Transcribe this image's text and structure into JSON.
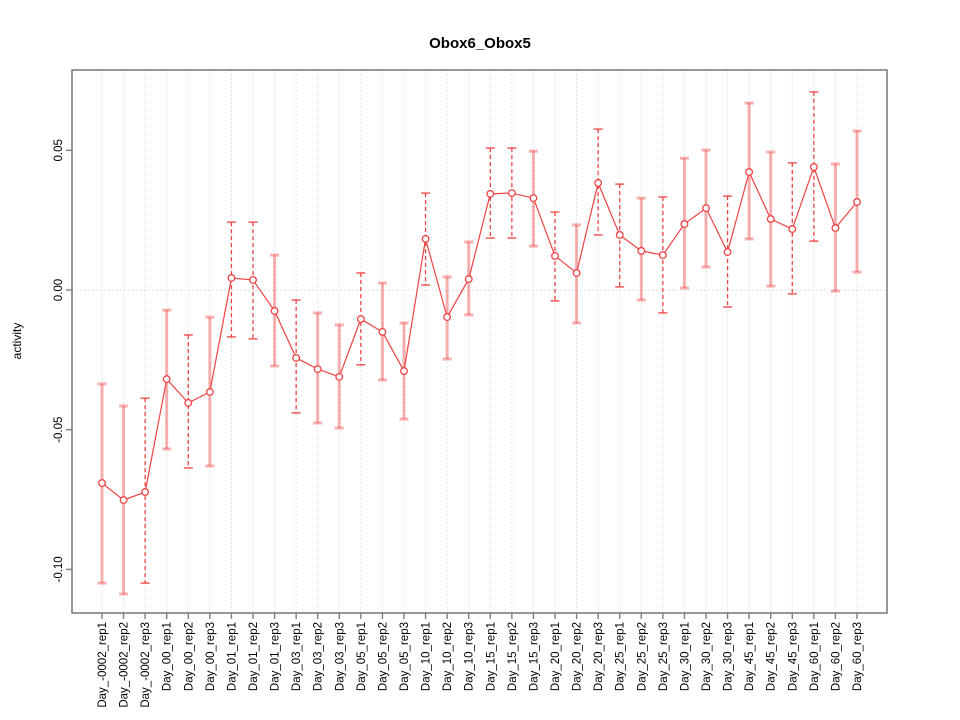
{
  "title": "Obox6_Obox5",
  "colors": {
    "series_red": "#ee4242",
    "band_pink": "rgba(238,66,66,0.42)",
    "grid": "#d8d8d8",
    "box": "#7e7e7e",
    "text": "#000000",
    "background": "#ffffff"
  },
  "chart_data": {
    "type": "line",
    "title": "Obox6_Obox5",
    "xlabel": "",
    "ylabel": "activity",
    "ylim": [
      -0.115,
      0.079
    ],
    "yticks": [
      0.05,
      0.0,
      -0.05,
      -0.1
    ],
    "ytick_labels": [
      "0.05",
      "0.00",
      "-0.05",
      "-0.10"
    ],
    "grid": "vertical dotted line at every category; horizontal dotted line at y=0",
    "legend": "none",
    "marker": "open-circle",
    "categories": [
      "Day_-0002_rep1",
      "Day_-0002_rep2",
      "Day_-0002_rep3",
      "Day_00_rep1",
      "Day_00_rep2",
      "Day_00_rep3",
      "Day_01_rep1",
      "Day_01_rep2",
      "Day_01_rep3",
      "Day_03_rep1",
      "Day_03_rep2",
      "Day_03_rep3",
      "Day_05_rep1",
      "Day_05_rep2",
      "Day_05_rep3",
      "Day_10_rep1",
      "Day_10_rep2",
      "Day_10_rep3",
      "Day_15_rep1",
      "Day_15_rep2",
      "Day_15_rep3",
      "Day_20_rep1",
      "Day_20_rep2",
      "Day_20_rep3",
      "Day_25_rep1",
      "Day_25_rep2",
      "Day_25_rep3",
      "Day_30_rep1",
      "Day_30_rep2",
      "Day_30_rep3",
      "Day_45_rep1",
      "Day_45_rep2",
      "Day_45_rep3",
      "Day_60_rep1",
      "Day_60_rep2",
      "Day_60_rep3"
    ],
    "series": [
      {
        "name": "activity",
        "values": [
          -0.0691,
          -0.0752,
          -0.0723,
          -0.0319,
          -0.0404,
          -0.0365,
          0.0043,
          0.0036,
          -0.0075,
          -0.0243,
          -0.0283,
          -0.0311,
          -0.0104,
          -0.015,
          -0.029,
          0.0183,
          -0.0097,
          0.0039,
          0.0344,
          0.0347,
          0.0329,
          0.0122,
          0.0061,
          0.0383,
          0.0197,
          0.014,
          0.0125,
          0.0236,
          0.0293,
          0.0136,
          0.0422,
          0.0254,
          0.0218,
          0.044,
          0.0222,
          0.0315
        ],
        "err_low": [
          -0.1049,
          -0.1088,
          -0.1049,
          -0.0569,
          -0.0637,
          -0.063,
          -0.0168,
          -0.0175,
          -0.0272,
          -0.044,
          -0.0476,
          -0.0494,
          -0.0268,
          -0.0322,
          -0.0462,
          0.0018,
          -0.0247,
          -0.0089,
          0.0186,
          0.0186,
          0.0157,
          -0.0039,
          -0.0118,
          0.0197,
          0.0011,
          -0.0036,
          -0.0082,
          0.0007,
          0.0082,
          -0.0061,
          0.0183,
          0.0014,
          -0.0014,
          0.0175,
          -0.0004,
          0.0064
        ],
        "err_high": [
          -0.0336,
          -0.0415,
          -0.0387,
          -0.0072,
          -0.0161,
          -0.0097,
          0.0243,
          0.0243,
          0.0125,
          -0.0036,
          -0.0082,
          -0.0125,
          0.0061,
          0.0025,
          -0.0118,
          0.0347,
          0.0047,
          0.0172,
          0.0508,
          0.0508,
          0.0497,
          0.0279,
          0.0233,
          0.0576,
          0.0379,
          0.0329,
          0.0333,
          0.0472,
          0.0501,
          0.0336,
          0.0669,
          0.0494,
          0.0455,
          0.0709,
          0.0451,
          0.0569
        ],
        "err_bar_styles": [
          "solid",
          "solid",
          "dashed",
          "solid",
          "dashed",
          "solid",
          "dashed",
          "dashed",
          "solid",
          "dashed",
          "solid",
          "solid",
          "dashed",
          "solid",
          "solid",
          "dashed",
          "solid",
          "solid",
          "dashed",
          "dashed",
          "solid",
          "dashed",
          "solid",
          "dashed",
          "dashed",
          "solid",
          "dashed",
          "solid",
          "solid",
          "dashed",
          "solid",
          "solid",
          "dashed",
          "dashed",
          "solid",
          "solid"
        ]
      }
    ]
  }
}
